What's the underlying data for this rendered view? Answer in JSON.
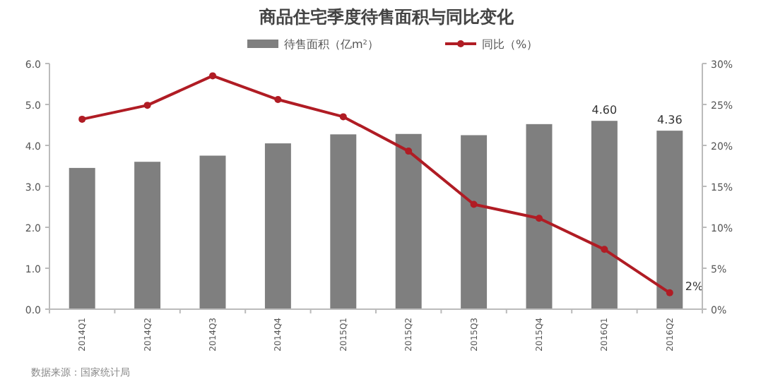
{
  "chart_data": {
    "type": "bar",
    "title": "商品住宅季度待售面积与同比变化",
    "categories": [
      "2014Q1",
      "2014Q2",
      "2014Q3",
      "2014Q4",
      "2015Q1",
      "2015Q2",
      "2015Q3",
      "2015Q4",
      "2016Q1",
      "2016Q2"
    ],
    "series": [
      {
        "name": "待售面积（亿m²）",
        "color": "#7f7f7f",
        "values": [
          3.45,
          3.6,
          3.75,
          4.05,
          4.27,
          4.28,
          4.25,
          4.52,
          4.6,
          4.36
        ],
        "value_labels": [
          null,
          null,
          null,
          null,
          null,
          null,
          null,
          null,
          "4.60",
          "4.36"
        ]
      },
      {
        "name": "同比（%）",
        "type": "line",
        "axis": "y2",
        "color": "#b01c24",
        "marker": "circle",
        "values": [
          23.2,
          24.9,
          28.5,
          25.6,
          23.5,
          19.3,
          12.8,
          11.1,
          7.3,
          2
        ],
        "value_labels": [
          null,
          null,
          null,
          null,
          null,
          null,
          null,
          null,
          null,
          "2%"
        ]
      }
    ],
    "ylim": [
      0,
      6
    ],
    "yticks": [
      {
        "value": 0,
        "label": "0.0"
      },
      {
        "value": 1,
        "label": "1.0"
      },
      {
        "value": 2,
        "label": "2.0"
      },
      {
        "value": 3,
        "label": "3.0"
      },
      {
        "value": 4,
        "label": "4.0"
      },
      {
        "value": 5,
        "label": "5.0"
      },
      {
        "value": 6,
        "label": "6.0"
      }
    ],
    "y2lim": [
      0,
      30
    ],
    "y2ticks": [
      {
        "value": 0,
        "label": "0%"
      },
      {
        "value": 5,
        "label": "5%"
      },
      {
        "value": 10,
        "label": "10%"
      },
      {
        "value": 15,
        "label": "15%"
      },
      {
        "value": 20,
        "label": "20%"
      },
      {
        "value": 25,
        "label": "25%"
      },
      {
        "value": 30,
        "label": "30%"
      }
    ],
    "legend": "top",
    "annotations": [
      "数据来源：国家统计局"
    ]
  }
}
